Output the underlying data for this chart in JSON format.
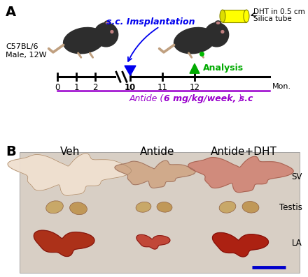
{
  "panel_A_label": "A",
  "panel_B_label": "B",
  "mouse_info_line1": "C57BL/6",
  "mouse_info_line2": "Male, 12W",
  "implantation_label": "s.c. Imsplantation",
  "dht_label_line1": "DHT in 0.5 cm",
  "dht_label_line2": "Silica tube",
  "analysis_label": "Analysis",
  "timeline_label": "Mon.",
  "antide_label_normal": "Antide (",
  "antide_label_bold": "6 mg/kg/week, s.c",
  "antide_label_end": ")",
  "veh_label": "Veh",
  "antide_group_label": "Antide",
  "antide_dht_label": "Antide+DHT",
  "sv_label": "SV",
  "testis_label": "Testis",
  "la_label": "LA",
  "bg_color": "#ffffff",
  "implant_color": "#0000ee",
  "analysis_color": "#00aa00",
  "antide_text_color": "#9900cc",
  "dht_box_color": "#ffff00",
  "timeline_color": "#000000",
  "panel_bg_B": "#d8cfc5",
  "mouse_color": "#2d2d2d",
  "mouse_ear_color": "#c08080",
  "mouse_tail_color": "#c0a080"
}
